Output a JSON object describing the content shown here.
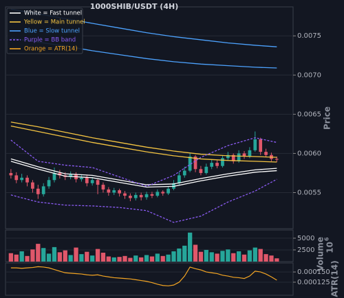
{
  "chart_data": [
    {
      "type": "candlestick",
      "title": "1000SHIB/USDT (4H)",
      "ylabel": "Price",
      "open": [
        0.00575,
        0.00572,
        0.00566,
        0.00569,
        0.00563,
        0.00555,
        0.00548,
        0.00558,
        0.00566,
        0.00575,
        0.00572,
        0.0057,
        0.00573,
        0.00567,
        0.00569,
        0.00562,
        0.00566,
        0.0056,
        0.00554,
        0.0055,
        0.00553,
        0.00549,
        0.00546,
        0.00543,
        0.00547,
        0.00544,
        0.00548,
        0.00546,
        0.00551,
        0.00549,
        0.00555,
        0.00562,
        0.00572,
        0.00578,
        0.00596,
        0.0058,
        0.00575,
        0.00583,
        0.00588,
        0.00584,
        0.00594,
        0.00598,
        0.0059,
        0.006,
        0.00596,
        0.00604,
        0.00618,
        0.00602,
        0.00598,
        0.00593
      ],
      "high": [
        0.0058,
        0.00576,
        0.00574,
        0.00572,
        0.00566,
        0.0056,
        0.00562,
        0.0057,
        0.00582,
        0.00579,
        0.00576,
        0.00577,
        0.00576,
        0.00573,
        0.00572,
        0.0057,
        0.00568,
        0.00563,
        0.00557,
        0.00556,
        0.00555,
        0.00552,
        0.00549,
        0.0055,
        0.0055,
        0.00551,
        0.00551,
        0.00554,
        0.00553,
        0.00558,
        0.00566,
        0.00576,
        0.00583,
        0.006,
        0.00598,
        0.00584,
        0.00587,
        0.00592,
        0.00591,
        0.00597,
        0.00602,
        0.006,
        0.00604,
        0.00603,
        0.00608,
        0.00628,
        0.0062,
        0.00606,
        0.00601,
        0.00596
      ],
      "low": [
        0.00568,
        0.00562,
        0.00563,
        0.00558,
        0.0055,
        0.00542,
        0.00545,
        0.00555,
        0.00563,
        0.00568,
        0.00566,
        0.00567,
        0.00563,
        0.00564,
        0.00558,
        0.00559,
        0.00548,
        0.0055,
        0.00546,
        0.00547,
        0.00545,
        0.00542,
        0.00539,
        0.0054,
        0.0054,
        0.00541,
        0.00543,
        0.00544,
        0.00546,
        0.00547,
        0.00553,
        0.0056,
        0.00569,
        0.00576,
        0.00576,
        0.00572,
        0.00573,
        0.0058,
        0.00581,
        0.00582,
        0.00591,
        0.00587,
        0.00588,
        0.00593,
        0.00594,
        0.00602,
        0.00598,
        0.00595,
        0.0059,
        0.00589
      ],
      "close": [
        0.00572,
        0.00566,
        0.00569,
        0.00563,
        0.00555,
        0.00548,
        0.00558,
        0.00566,
        0.00575,
        0.00572,
        0.0057,
        0.00573,
        0.00567,
        0.00569,
        0.00562,
        0.00566,
        0.0056,
        0.00554,
        0.0055,
        0.00553,
        0.00549,
        0.00546,
        0.00543,
        0.00547,
        0.00544,
        0.00548,
        0.00546,
        0.00551,
        0.00549,
        0.00555,
        0.00562,
        0.00572,
        0.00578,
        0.00596,
        0.0058,
        0.00575,
        0.00583,
        0.00588,
        0.00584,
        0.00594,
        0.00598,
        0.0059,
        0.006,
        0.00596,
        0.00604,
        0.00618,
        0.00602,
        0.00598,
        0.00593,
        0.00592
      ],
      "up_color": "#26a69a",
      "down_color": "#e0576a",
      "line_x": [
        0,
        5,
        10,
        15,
        20,
        25,
        30,
        35,
        40,
        45,
        49
      ],
      "bands": [
        {
          "name": "White = Fast tunnel",
          "color": "#ffffff",
          "dashed": false,
          "upper": [
            0.00593,
            0.00583,
            0.00574,
            0.00572,
            0.00566,
            0.0056,
            0.00561,
            0.00568,
            0.00574,
            0.00579,
            0.00581
          ],
          "lower": [
            0.0059,
            0.0058,
            0.00571,
            0.00569,
            0.00563,
            0.00557,
            0.00558,
            0.00565,
            0.00571,
            0.00576,
            0.00578
          ]
        },
        {
          "name": "Yellow = Main tunnel",
          "color": "#f5c542",
          "dashed": false,
          "upper": [
            0.0064,
            0.00634,
            0.00627,
            0.0062,
            0.00614,
            0.00608,
            0.00603,
            0.00599,
            0.00597,
            0.00596,
            0.00595
          ],
          "lower": [
            0.00635,
            0.00628,
            0.00621,
            0.00614,
            0.00608,
            0.00602,
            0.00597,
            0.00593,
            0.00591,
            0.0059,
            0.00589
          ]
        },
        {
          "name": "Blue = Slow tunnel",
          "color": "#4da3ff",
          "dashed": false,
          "upper": [
            0.00784,
            0.00778,
            0.00772,
            0.00766,
            0.0076,
            0.00754,
            0.00749,
            0.00745,
            0.00741,
            0.00738,
            0.00736
          ],
          "lower": [
            0.00747,
            0.00742,
            0.00737,
            0.00731,
            0.00726,
            0.00721,
            0.00717,
            0.00714,
            0.00712,
            0.0071,
            0.00709
          ]
        },
        {
          "name": "Purple = BB band",
          "color": "#8c5cf5",
          "dashed": true,
          "upper": [
            0.00617,
            0.0059,
            0.00585,
            0.00582,
            0.0057,
            0.00558,
            0.00572,
            0.00595,
            0.0061,
            0.0062,
            0.00614
          ],
          "lower": [
            0.00547,
            0.00538,
            0.00534,
            0.00533,
            0.00531,
            0.00527,
            0.00512,
            0.0052,
            0.00538,
            0.00552,
            0.00567
          ]
        }
      ],
      "xlim": [
        -1,
        52
      ],
      "ylim": [
        0.00504,
        0.00787
      ],
      "yticks": [
        0.0055,
        {
          "value": 0.006,
          "label": "0.0060"
        },
        0.0065,
        {
          "value": 0.007,
          "label": "0.0070"
        },
        0.0075
      ],
      "grid": true,
      "legend": "upper left"
    },
    {
      "type": "bar",
      "ylabel": "Volume",
      "offset_text": {
        "base": "10",
        "exponent": "6"
      },
      "values": [
        1800,
        1500,
        2200,
        1200,
        2600,
        3800,
        2900,
        1700,
        3100,
        2000,
        2400,
        1400,
        3000,
        1600,
        2100,
        1300,
        2700,
        1900,
        1100,
        900,
        1000,
        1200,
        800,
        1300,
        900,
        1400,
        1100,
        1700,
        1200,
        1500,
        2200,
        2800,
        3400,
        6200,
        3600,
        2100,
        2500,
        2000,
        1700,
        2300,
        2600,
        1800,
        2200,
        1500,
        2400,
        3000,
        2700,
        1600,
        1300,
        700
      ],
      "xlim": [
        -1,
        52
      ],
      "ylim": [
        0,
        6750
      ],
      "yticks": [
        2500,
        5000
      ],
      "grid": true
    },
    {
      "type": "line",
      "ylabel": "ATR(14)",
      "series": [
        {
          "name": "Orange = ATR(14)",
          "color": "#f5a623",
          "values": [
            0.00016,
            0.00016,
            0.000159,
            0.00016,
            0.000161,
            0.000163,
            0.000162,
            0.00016,
            0.000156,
            0.000152,
            0.000148,
            0.000147,
            0.000146,
            0.000145,
            0.000143,
            0.000142,
            0.000143,
            0.00014,
            0.000138,
            0.000136,
            0.000135,
            0.000134,
            0.000133,
            0.000131,
            0.000129,
            0.000127,
            0.000124,
            0.00012,
            0.000117,
            0.000116,
            0.000118,
            0.000125,
            0.00014,
            0.000162,
            0.000158,
            0.000155,
            0.00015,
            0.000148,
            0.000146,
            0.000142,
            0.00014,
            0.000137,
            0.000136,
            0.000134,
            0.00014,
            0.000152,
            0.00015,
            0.000145,
            0.000138,
            0.00013
          ]
        }
      ],
      "xlim": [
        -1,
        52
      ],
      "ylim": [
        9.3e-05,
        0.000172
      ],
      "yticks": [
        0.000125,
        {
          "value": 0.00015,
          "label": "0.000150"
        }
      ],
      "grid": true
    }
  ]
}
